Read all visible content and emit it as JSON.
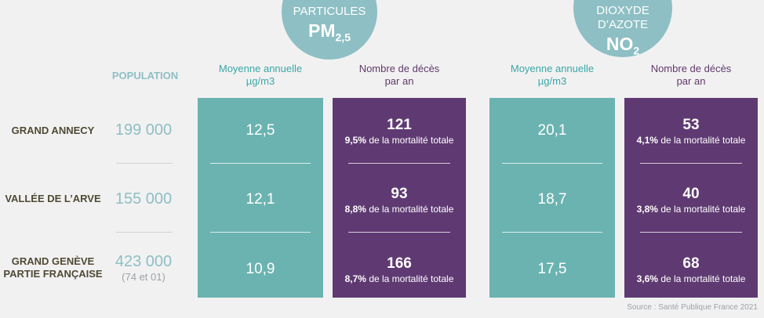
{
  "pollutants": {
    "pm": {
      "line1": "PARTICULES",
      "symbol": "PM",
      "sub": "2,5"
    },
    "no2": {
      "line1": "DIOXYDE",
      "line2": "D’AZOTE",
      "symbol": "NO",
      "sub": "2"
    }
  },
  "headers": {
    "population": "POPULATION",
    "mean": "Moyenne annuelle",
    "mean_unit": "µg/m3",
    "deaths": "Nombre de décès",
    "deaths_unit": "par an"
  },
  "rows": [
    {
      "label1": "GRAND ANNECY",
      "label2": "",
      "population": "199 000",
      "population_note": "",
      "pm_mean": "12,5",
      "pm_deaths": "121",
      "pm_pct": "9,5%",
      "no2_mean": "20,1",
      "no2_deaths": "53",
      "no2_pct": "4,1%"
    },
    {
      "label1": "VALLÉE DE L’ARVE",
      "label2": "",
      "population": "155 000",
      "population_note": "",
      "pm_mean": "12,1",
      "pm_deaths": "93",
      "pm_pct": "8,8%",
      "no2_mean": "18,7",
      "no2_deaths": "40",
      "no2_pct": "3,8%"
    },
    {
      "label1": "GRAND GENÈVE",
      "label2": "PARTIE FRANÇAISE",
      "population": "423 000",
      "population_note": "(74 et 01)",
      "pm_mean": "10,9",
      "pm_deaths": "166",
      "pm_pct": "8,7%",
      "no2_mean": "17,5",
      "no2_deaths": "68",
      "no2_pct": "3,6%"
    }
  ],
  "mortality_text": "de la mortalité totale",
  "source": "Source : Santé Publique France 2021",
  "colors": {
    "teal": "#6bb3b0",
    "purple": "#5f3a72",
    "bubble": "#8dbfc4",
    "background": "#f2f1f2"
  }
}
